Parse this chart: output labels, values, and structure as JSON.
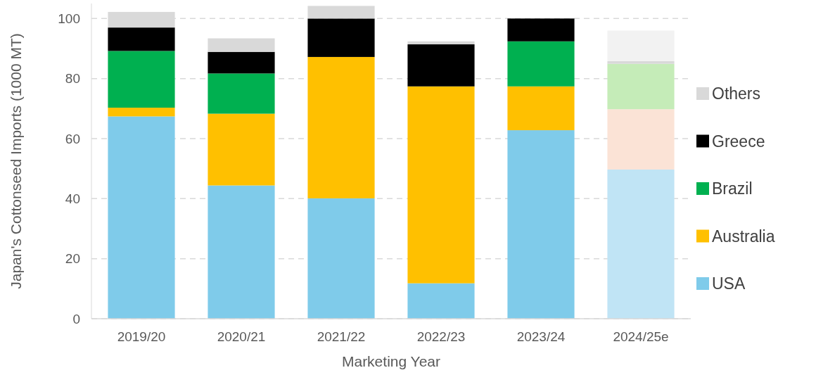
{
  "chart_data": {
    "type": "bar",
    "stacked": true,
    "ylabel": "Japan's Cottonseed Imports (1000 MT)",
    "xlabel": "Marketing Year",
    "categories": [
      "2019/20",
      "2020/21",
      "2021/22",
      "2022/23",
      "2023/24",
      "2024/25e"
    ],
    "series": [
      {
        "name": "USA",
        "color": "#7fcbea",
        "colors": [
          "#7fcbea",
          "#7fcbea",
          "#7fcbea",
          "#7fcbea",
          "#7fcbea",
          "#c0e4f5"
        ],
        "values": [
          67.4,
          44.4,
          40.1,
          11.8,
          62.8,
          49.7
        ]
      },
      {
        "name": "Australia",
        "color": "#ffc000",
        "colors": [
          "#ffc000",
          "#ffc000",
          "#ffc000",
          "#ffc000",
          "#ffc000",
          "#fbe3d6"
        ],
        "values": [
          2.9,
          23.9,
          47.1,
          65.6,
          14.6,
          20.1
        ]
      },
      {
        "name": "Brazil",
        "color": "#00b050",
        "colors": [
          "#00b050",
          "#00b050",
          "#00b050",
          "#00b050",
          "#00b050",
          "#c5ecb8"
        ],
        "values": [
          18.9,
          13.4,
          0,
          0,
          15.0,
          15.1
        ]
      },
      {
        "name": "Greece",
        "color": "#000000",
        "colors": [
          "#000000",
          "#000000",
          "#000000",
          "#000000",
          "#000000",
          "#d9d9d9"
        ],
        "values": [
          7.8,
          7.2,
          12.8,
          14.0,
          7.6,
          0.9
        ]
      },
      {
        "name": "Others",
        "color": "#d9d9d9",
        "colors": [
          "#d9d9d9",
          "#d9d9d9",
          "#d9d9d9",
          "#d9d9d9",
          "#d9d9d9",
          "#f2f2f2"
        ],
        "values": [
          5.2,
          4.5,
          4.2,
          1.0,
          0,
          10.2
        ]
      }
    ],
    "ylim": [
      0,
      105
    ],
    "yticks": [
      0,
      20,
      40,
      60,
      80,
      100
    ],
    "grid": "y",
    "legend": "right"
  }
}
